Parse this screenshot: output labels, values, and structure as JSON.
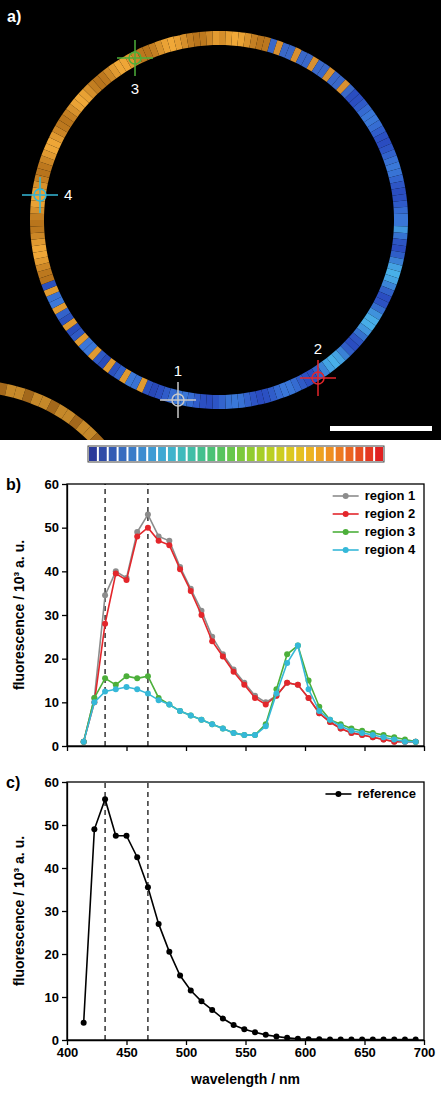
{
  "panel_a": {
    "panel": "a)",
    "regions": [
      {
        "label": "1",
        "color": "#c8c8c8"
      },
      {
        "label": "2",
        "color": "#e3262b"
      },
      {
        "label": "3",
        "color": "#4caf3a"
      },
      {
        "label": "4",
        "color": "#35b8d8"
      }
    ]
  },
  "chart_data": [
    {
      "type": "line",
      "panel": "b)",
      "y_label": "fluorescence / 10³ a. u.",
      "x": [
        414,
        423,
        432,
        441,
        450,
        459,
        468,
        477,
        486,
        495,
        504,
        513,
        522,
        531,
        540,
        549,
        558,
        567,
        576,
        585,
        594,
        603,
        612,
        621,
        630,
        639,
        648,
        657,
        666,
        675,
        684,
        693
      ],
      "series": [
        {
          "name": "region 1",
          "color": "#8c8c8c",
          "values": [
            1,
            11,
            34.5,
            40,
            38.5,
            49,
            53,
            48,
            47,
            41,
            36,
            31,
            25,
            21,
            17.5,
            14.5,
            11.5,
            10,
            11.5,
            14.5,
            14,
            11,
            7.5,
            5.5,
            4,
            3,
            2.5,
            2,
            1.5,
            1,
            1,
            1
          ]
        },
        {
          "name": "region 2",
          "color": "#e3262b",
          "values": [
            1,
            10,
            28,
            39.5,
            38,
            48,
            50,
            47,
            46,
            40.5,
            35.5,
            30,
            24,
            20.5,
            17,
            14,
            11,
            9.5,
            11.5,
            14.5,
            14,
            11,
            7.5,
            5.5,
            4,
            3,
            2.5,
            2,
            1.5,
            1,
            1,
            1
          ]
        },
        {
          "name": "region 3",
          "color": "#4caf3a",
          "values": [
            1,
            11,
            15.5,
            14,
            16,
            15.5,
            16,
            11,
            9.5,
            8,
            7,
            6,
            5,
            4,
            3,
            2.5,
            2.5,
            5,
            13,
            21,
            23,
            15,
            9,
            6,
            5,
            4,
            3.5,
            3,
            2.5,
            2,
            1.5,
            1
          ]
        },
        {
          "name": "region 4",
          "color": "#35b8d8",
          "values": [
            1,
            10,
            12.5,
            13,
            13.5,
            13,
            12,
            10.5,
            9.5,
            8,
            7,
            6,
            5,
            4,
            3,
            2.5,
            2.5,
            4.5,
            12,
            19,
            23,
            13,
            8,
            6,
            4.5,
            3.5,
            3,
            2.5,
            2,
            1.5,
            1,
            1
          ]
        }
      ],
      "xlim": [
        400,
        700
      ],
      "xticks": [
        400,
        450,
        500,
        550,
        600,
        650,
        700
      ],
      "ylim": [
        0,
        60
      ],
      "yticks": [
        0,
        10,
        20,
        30,
        40,
        50,
        60
      ],
      "tick_labels": "y",
      "legend": "upper right",
      "marker": "circle",
      "vlines": [
        432,
        468
      ]
    },
    {
      "type": "line",
      "panel": "c)",
      "x_label": "wavelength / nm",
      "y_label": "fluorescence / 10³ a. u.",
      "x": [
        414,
        423,
        432,
        441,
        450,
        459,
        468,
        477,
        486,
        495,
        504,
        513,
        522,
        531,
        540,
        549,
        558,
        567,
        576,
        585,
        594,
        603,
        612,
        621,
        630,
        639,
        648,
        657,
        666,
        675,
        684,
        693
      ],
      "series": [
        {
          "name": "reference",
          "color": "#000000",
          "values": [
            4,
            49,
            56,
            47.5,
            47.5,
            42.5,
            35.5,
            27,
            20.5,
            15,
            11.5,
            9,
            7,
            5,
            3.5,
            2.5,
            1.8,
            1.2,
            0.8,
            0.5,
            0.3,
            0.2,
            0.2,
            0.1,
            0.1,
            0.1,
            0.1,
            0.1,
            0.1,
            0.1,
            0.1,
            0.1
          ]
        }
      ],
      "xlim": [
        400,
        700
      ],
      "xticks": [
        400,
        450,
        500,
        550,
        600,
        650,
        700
      ],
      "ylim": [
        0,
        60
      ],
      "yticks": [
        0,
        10,
        20,
        30,
        40,
        50,
        60
      ],
      "legend": "upper right",
      "marker": "circle",
      "vlines": [
        432,
        468
      ]
    }
  ]
}
